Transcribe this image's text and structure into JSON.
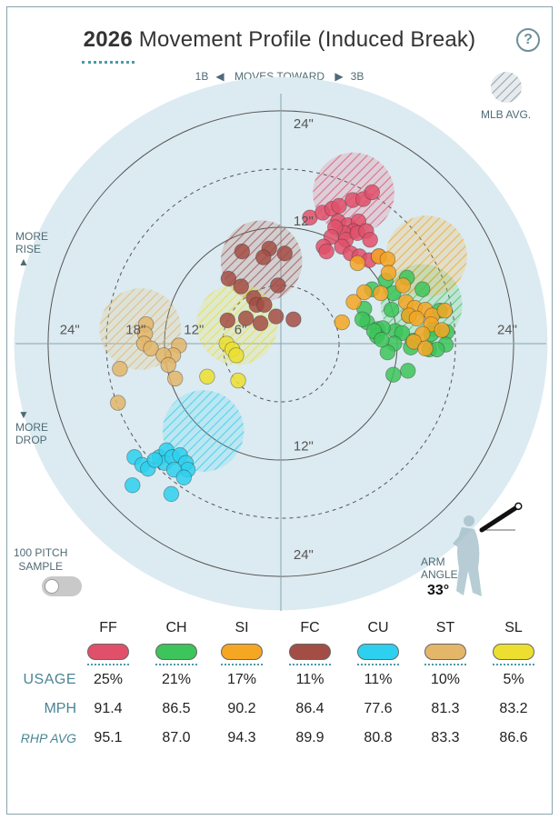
{
  "header": {
    "year": "2026",
    "title": "Movement Profile (Induced Break)",
    "help_label": "?"
  },
  "direction": {
    "left": "1B",
    "middle": "MOVES TOWARD",
    "right": "3B",
    "more_rise": "MORE RISE",
    "more_drop": "MORE DROP"
  },
  "legend": {
    "mlb_avg": "MLB AVG."
  },
  "sample": {
    "label_line1": "100 PITCH",
    "label_line2": "SAMPLE",
    "toggle_on": false
  },
  "arm": {
    "label_line1": "ARM",
    "label_line2": "ANGLE",
    "value": "33°",
    "angle_deg": 33
  },
  "chart_data": {
    "type": "scatter",
    "x_axis": "horizontal break (in), negative = toward 1B",
    "y_axis": "induced vertical break (in)",
    "xlim": [
      -24,
      24
    ],
    "ylim": [
      -24,
      24
    ],
    "ring_labels": [
      "24\"",
      "18\"",
      "12\"",
      "6\"",
      "12\"",
      "24\"",
      "24\"",
      "12\"",
      "24\""
    ],
    "series": [
      {
        "name": "FF",
        "color": "#e0506a",
        "mlb_avg": [
          7.5,
          15.5
        ],
        "points": [
          [
            3.0,
            13.0
          ],
          [
            4.3,
            13.5
          ],
          [
            5.3,
            13.9
          ],
          [
            6.0,
            14.2
          ],
          [
            7.4,
            14.8
          ],
          [
            8.5,
            14.9
          ],
          [
            9.4,
            15.6
          ],
          [
            5.9,
            12.6
          ],
          [
            6.9,
            12.2
          ],
          [
            8.0,
            12.6
          ],
          [
            7.5,
            11.6
          ],
          [
            6.5,
            11.4
          ],
          [
            5.6,
            12.0
          ],
          [
            5.2,
            11.0
          ],
          [
            6.7,
            10.7
          ],
          [
            7.9,
            11.4
          ],
          [
            8.8,
            11.6
          ],
          [
            9.2,
            10.7
          ],
          [
            6.3,
            10.0
          ],
          [
            4.4,
            10.0
          ],
          [
            4.7,
            9.5
          ],
          [
            7.2,
            9.3
          ],
          [
            8.1,
            9.0
          ],
          [
            9.1,
            8.6
          ],
          [
            10.1,
            9.0
          ]
        ]
      },
      {
        "name": "CH",
        "color": "#3dc45a",
        "mlb_avg": [
          14.5,
          4.0
        ],
        "points": [
          [
            10.8,
            6.5
          ],
          [
            13.0,
            6.8
          ],
          [
            9.4,
            5.6
          ],
          [
            11.6,
            5.2
          ],
          [
            14.6,
            5.6
          ],
          [
            8.6,
            3.6
          ],
          [
            11.4,
            3.5
          ],
          [
            16.4,
            3.4
          ],
          [
            13.2,
            2.9
          ],
          [
            8.9,
            2.2
          ],
          [
            10.0,
            1.5
          ],
          [
            11.8,
            1.3
          ],
          [
            15.7,
            1.5
          ],
          [
            13.6,
            0.3
          ],
          [
            17.1,
            1.2
          ],
          [
            15.5,
            1.0
          ],
          [
            10.5,
            1.6
          ],
          [
            12.5,
            1.1
          ],
          [
            9.9,
            0.8
          ],
          [
            11.7,
            0.0
          ],
          [
            13.4,
            -0.4
          ],
          [
            15.3,
            -0.6
          ],
          [
            17.0,
            -0.1
          ],
          [
            11.0,
            -0.9
          ],
          [
            13.1,
            -2.8
          ],
          [
            11.6,
            -3.2
          ],
          [
            16.1,
            -0.6
          ],
          [
            9.6,
            1.3
          ],
          [
            8.4,
            2.5
          ],
          [
            10.4,
            0.4
          ]
        ]
      },
      {
        "name": "SI",
        "color": "#f5a623",
        "mlb_avg": [
          15.0,
          9.0
        ],
        "points": [
          [
            10.1,
            9.0
          ],
          [
            11.0,
            8.7
          ],
          [
            7.9,
            8.3
          ],
          [
            11.1,
            7.3
          ],
          [
            12.6,
            6.0
          ],
          [
            7.5,
            4.3
          ],
          [
            8.6,
            5.3
          ],
          [
            10.3,
            5.2
          ],
          [
            6.3,
            2.2
          ],
          [
            12.9,
            4.3
          ],
          [
            13.8,
            3.7
          ],
          [
            14.9,
            3.5
          ],
          [
            13.2,
            2.9
          ],
          [
            14.0,
            2.6
          ],
          [
            15.6,
            2.9
          ],
          [
            16.9,
            3.4
          ],
          [
            15.5,
            2.0
          ],
          [
            14.6,
            1.0
          ],
          [
            16.6,
            1.4
          ],
          [
            13.7,
            0.2
          ],
          [
            14.9,
            -0.5
          ]
        ]
      },
      {
        "name": "FC",
        "color": "#a34e45",
        "mlb_avg": [
          -2.0,
          8.5
        ],
        "points": [
          [
            -4.0,
            9.5
          ],
          [
            -1.2,
            9.8
          ],
          [
            0.4,
            9.3
          ],
          [
            -1.8,
            8.9
          ],
          [
            -4.1,
            5.9
          ],
          [
            -5.4,
            6.7
          ],
          [
            -2.8,
            4.7
          ],
          [
            -2.5,
            4.0
          ],
          [
            -1.7,
            4.0
          ],
          [
            -5.5,
            2.4
          ],
          [
            -3.6,
            2.6
          ],
          [
            -2.1,
            2.1
          ],
          [
            -0.5,
            2.8
          ],
          [
            -0.3,
            6.0
          ],
          [
            1.3,
            2.5
          ]
        ]
      },
      {
        "name": "CU",
        "color": "#2dd0ef",
        "mlb_avg": [
          -8.0,
          -9.0
        ],
        "points": [
          [
            -15.1,
            -11.7
          ],
          [
            -14.3,
            -12.5
          ],
          [
            -13.7,
            -12.9
          ],
          [
            -12.5,
            -11.7
          ],
          [
            -11.8,
            -11.0
          ],
          [
            -12.0,
            -12.3
          ],
          [
            -11.2,
            -11.7
          ],
          [
            -10.4,
            -11.5
          ],
          [
            -9.8,
            -12.3
          ],
          [
            -9.6,
            -13.0
          ],
          [
            -11.0,
            -13.0
          ],
          [
            -15.3,
            -14.6
          ],
          [
            -11.3,
            -15.5
          ],
          [
            -10.0,
            -13.8
          ],
          [
            -13.0,
            -12.0
          ]
        ]
      },
      {
        "name": "ST",
        "color": "#e3b66a",
        "mlb_avg": [
          -14.5,
          1.5
        ],
        "points": [
          [
            -13.9,
            2.0
          ],
          [
            -14.0,
            1.0
          ],
          [
            -14.1,
            0.0
          ],
          [
            -13.4,
            -0.5
          ],
          [
            -10.5,
            -0.2
          ],
          [
            -11.1,
            -1.2
          ],
          [
            -12.1,
            -1.2
          ],
          [
            -11.6,
            -2.2
          ],
          [
            -16.6,
            -2.6
          ],
          [
            -10.9,
            -3.6
          ],
          [
            -16.8,
            -6.1
          ]
        ]
      },
      {
        "name": "SL",
        "color": "#ecdf30",
        "mlb_avg": [
          -4.5,
          2.0
        ],
        "points": [
          [
            -5.6,
            0.0
          ],
          [
            -5.0,
            -0.6
          ],
          [
            -4.6,
            -1.2
          ],
          [
            -7.6,
            -3.4
          ],
          [
            -4.4,
            -3.8
          ]
        ]
      }
    ],
    "table": {
      "columns": [
        "FF",
        "CH",
        "SI",
        "FC",
        "CU",
        "ST",
        "SL"
      ],
      "rows": [
        {
          "label": "USAGE",
          "values": [
            "25%",
            "21%",
            "17%",
            "11%",
            "11%",
            "10%",
            "5%"
          ]
        },
        {
          "label": "MPH",
          "values": [
            "91.4",
            "86.5",
            "90.2",
            "86.4",
            "77.6",
            "81.3",
            "83.2"
          ]
        },
        {
          "label": "RHP AVG",
          "values": [
            "95.1",
            "87.0",
            "94.3",
            "89.9",
            "80.8",
            "83.3",
            "86.6"
          ]
        }
      ]
    }
  }
}
